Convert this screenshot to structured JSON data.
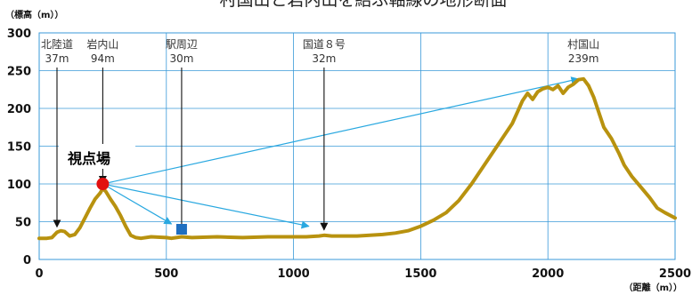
{
  "chart_data": {
    "type": "line",
    "title": "村国山と岩内山を結ぶ軸線の地形断面",
    "ylabel": "（標高（m））",
    "xlabel": "（距離（m））",
    "xlim": [
      0,
      2500
    ],
    "ylim": [
      0,
      300
    ],
    "x_ticks": [
      0,
      500,
      1000,
      1500,
      2000,
      2500
    ],
    "y_ticks": [
      0,
      50,
      100,
      150,
      200,
      250,
      300
    ],
    "grid": true,
    "colors": {
      "profile": "#b8920f",
      "grid": "#3a9ad9",
      "sightline": "#29a8e0",
      "viewpoint": "#e21010",
      "station": "#1f6fc0",
      "arrow": "#111111"
    },
    "series": [
      {
        "x": [
          0,
          30,
          50,
          70,
          85,
          100,
          120,
          140,
          160,
          180,
          200,
          220,
          240,
          250,
          262,
          280,
          300,
          320,
          340,
          360,
          380,
          400,
          440,
          500,
          520,
          560,
          600,
          700,
          800,
          900,
          1000,
          1050,
          1100,
          1120,
          1150,
          1200,
          1250,
          1300,
          1350,
          1400,
          1450,
          1500,
          1550,
          1600,
          1650,
          1700,
          1750,
          1800,
          1830,
          1860,
          1880,
          1900,
          1920,
          1940,
          1960,
          1980,
          2000,
          2020,
          2040,
          2060,
          2080,
          2100,
          2120,
          2140,
          2160,
          2180,
          2200,
          2220,
          2250,
          2280,
          2300,
          2330,
          2360,
          2400,
          2430,
          2460,
          2500
        ],
        "values": [
          28,
          28,
          29,
          36,
          38,
          37,
          31,
          33,
          42,
          55,
          68,
          80,
          88,
          94,
          90,
          80,
          70,
          58,
          44,
          32,
          29,
          28,
          30,
          29,
          28,
          30,
          29,
          30,
          29,
          30,
          30,
          30,
          31,
          32,
          31,
          31,
          31,
          32,
          33,
          35,
          38,
          44,
          52,
          62,
          78,
          100,
          125,
          150,
          165,
          180,
          195,
          210,
          220,
          212,
          222,
          226,
          228,
          225,
          230,
          220,
          228,
          232,
          238,
          239,
          230,
          215,
          195,
          175,
          160,
          140,
          125,
          110,
          98,
          82,
          68,
          62,
          55
        ]
      }
    ],
    "annotations": [
      {
        "name": "北陸道",
        "elev": "37m",
        "x": 70
      },
      {
        "name": "岩内山",
        "elev": "94m",
        "x": 250
      },
      {
        "name": "駅周辺",
        "elev": "30m",
        "x": 560
      },
      {
        "name": "国道８号",
        "elev": "32m",
        "x": 1120
      },
      {
        "name": "村国山",
        "elev": "239m",
        "x": 2140
      }
    ],
    "viewpoint": {
      "label": "視点場",
      "x": 250,
      "y": 100
    },
    "station_marker": {
      "x": 560,
      "y": 40
    },
    "sight_targets": [
      {
        "x": 520,
        "y": 47
      },
      {
        "x": 1060,
        "y": 44
      },
      {
        "x": 2120,
        "y": 239
      }
    ]
  }
}
